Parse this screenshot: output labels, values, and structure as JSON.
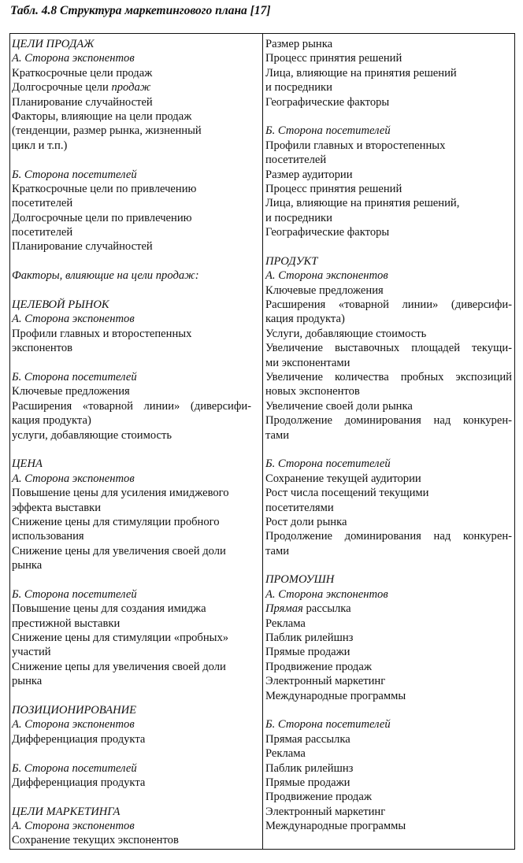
{
  "title": "Табл. 4.8 Структура маркетингового плана [17]",
  "left": [
    {
      "parts": [
        {
          "t": "ЦЕЛИ ПРОДАЖ",
          "i": true
        }
      ]
    },
    {
      "parts": [
        {
          "t": "А. Сторона экспонентов",
          "i": true
        }
      ]
    },
    {
      "parts": [
        {
          "t": "Краткосрочные цели продаж"
        }
      ]
    },
    {
      "parts": [
        {
          "t": "Долгосрочные цели "
        },
        {
          "t": "продаж",
          "i": true
        }
      ]
    },
    {
      "parts": [
        {
          "t": "Планирование случайностей"
        }
      ]
    },
    {
      "parts": [
        {
          "t": "Факторы, влияющие на цели продаж"
        }
      ]
    },
    {
      "parts": [
        {
          "t": "(тенденции, размер рынка, жизненный"
        }
      ]
    },
    {
      "parts": [
        {
          "t": "цикл и т.п.)"
        }
      ]
    },
    {
      "parts": []
    },
    {
      "parts": [
        {
          "t": "Б. Сторона посетителей",
          "i": true
        }
      ]
    },
    {
      "parts": [
        {
          "t": "Краткосрочные цели по привлечению"
        }
      ]
    },
    {
      "parts": [
        {
          "t": "посетителей"
        }
      ]
    },
    {
      "parts": [
        {
          "t": "Долгосрочные цели по привлечению"
        }
      ]
    },
    {
      "parts": [
        {
          "t": "посетителей"
        }
      ]
    },
    {
      "parts": [
        {
          "t": "Планирование случайностей"
        }
      ]
    },
    {
      "parts": []
    },
    {
      "parts": [
        {
          "t": "Факторы, влияющие на цели продаж:",
          "i": true
        }
      ]
    },
    {
      "parts": []
    },
    {
      "parts": [
        {
          "t": "ЦЕЛЕВОЙ РЫНОК",
          "i": true
        }
      ]
    },
    {
      "parts": [
        {
          "t": "А. Сторона экспонентов",
          "i": true
        }
      ]
    },
    {
      "parts": [
        {
          "t": "Профили главных и второстепенных"
        }
      ]
    },
    {
      "parts": [
        {
          "t": "экспонентов"
        }
      ]
    },
    {
      "parts": []
    },
    {
      "parts": [
        {
          "t": "Б. Сторона посетителей",
          "i": true
        }
      ]
    },
    {
      "parts": [
        {
          "t": "Ключевые предложения"
        }
      ]
    },
    {
      "parts": [
        {
          "t": "Расширения «товарной линии» (диверсифи-"
        }
      ]
    },
    {
      "parts": [
        {
          "t": "кация продукта)"
        }
      ]
    },
    {
      "parts": [
        {
          "t": "услуги, добавляющие стоимость"
        }
      ]
    },
    {
      "parts": []
    },
    {
      "parts": [
        {
          "t": "ЦЕНА",
          "i": true
        }
      ]
    },
    {
      "parts": [
        {
          "t": "А. Сторона экспонентов",
          "i": true
        }
      ]
    },
    {
      "parts": [
        {
          "t": "Повышение цены для усиления имиджевого"
        }
      ]
    },
    {
      "parts": [
        {
          "t": "эффекта выставки"
        }
      ]
    },
    {
      "parts": [
        {
          "t": "Снижение цены для стимуляции пробного"
        }
      ]
    },
    {
      "parts": [
        {
          "t": "использования"
        }
      ]
    },
    {
      "parts": [
        {
          "t": "Снижение цены для увеличения своей доли"
        }
      ]
    },
    {
      "parts": [
        {
          "t": "рынка"
        }
      ]
    },
    {
      "parts": []
    },
    {
      "parts": [
        {
          "t": "Б. Сторона посетителей",
          "i": true
        }
      ]
    },
    {
      "parts": [
        {
          "t": "Повышение цены для создания имиджа"
        }
      ]
    },
    {
      "parts": [
        {
          "t": "престижной выставки"
        }
      ]
    },
    {
      "parts": [
        {
          "t": "Снижение цены для стимуляции «пробных»"
        }
      ]
    },
    {
      "parts": [
        {
          "t": "участий"
        }
      ]
    },
    {
      "parts": [
        {
          "t": "Снижение цепы для увеличения своей доли"
        }
      ]
    },
    {
      "parts": [
        {
          "t": "рынка"
        }
      ]
    },
    {
      "parts": []
    },
    {
      "parts": [
        {
          "t": "ПОЗИЦИОНИРОВАНИЕ",
          "i": true
        }
      ]
    },
    {
      "parts": [
        {
          "t": "А. Сторона экспонентов",
          "i": true
        }
      ]
    },
    {
      "parts": [
        {
          "t": "Дифференциация продукта"
        }
      ]
    },
    {
      "parts": []
    },
    {
      "parts": [
        {
          "t": "Б. Сторона посетителей",
          "i": true
        }
      ]
    },
    {
      "parts": [
        {
          "t": "Дифференциация продукта"
        }
      ]
    },
    {
      "parts": []
    },
    {
      "parts": [
        {
          "t": "ЦЕЛИ МАРКЕТИНГА",
          "i": true
        }
      ]
    },
    {
      "parts": [
        {
          "t": "А. Сторона экспонентов",
          "i": true
        }
      ]
    },
    {
      "parts": [
        {
          "t": "Сохранение текущих экспонентов"
        }
      ]
    }
  ],
  "right": [
    {
      "parts": [
        {
          "t": "Размер рынка"
        }
      ]
    },
    {
      "parts": [
        {
          "t": "Процесс принятия решений"
        }
      ]
    },
    {
      "parts": [
        {
          "t": "Лица, влияющие на принятия решений"
        }
      ]
    },
    {
      "parts": [
        {
          "t": "и посредники"
        }
      ]
    },
    {
      "parts": [
        {
          "t": "Географические факторы"
        }
      ]
    },
    {
      "parts": []
    },
    {
      "parts": [
        {
          "t": "Б. Сторона посетителей",
          "i": true
        }
      ]
    },
    {
      "parts": [
        {
          "t": "Профили главных и второстепенных"
        }
      ]
    },
    {
      "parts": [
        {
          "t": "посетителей"
        }
      ]
    },
    {
      "parts": [
        {
          "t": "Размер аудитории"
        }
      ]
    },
    {
      "parts": [
        {
          "t": "Процесс принятия решений"
        }
      ]
    },
    {
      "parts": [
        {
          "t": "Лица, влияющие на принятия решений,"
        }
      ]
    },
    {
      "parts": [
        {
          "t": "и посредники"
        }
      ]
    },
    {
      "parts": [
        {
          "t": "Географические факторы"
        }
      ]
    },
    {
      "parts": []
    },
    {
      "parts": [
        {
          "t": "ПРОДУКТ",
          "i": true
        }
      ]
    },
    {
      "parts": [
        {
          "t": "А. Сторона экспонентов",
          "i": true
        }
      ]
    },
    {
      "parts": [
        {
          "t": "Ключевые предложения"
        }
      ]
    },
    {
      "parts": [
        {
          "t": "Расширения «товарной линии» (диверсифи-"
        }
      ]
    },
    {
      "parts": [
        {
          "t": "кация продукта)"
        }
      ]
    },
    {
      "parts": [
        {
          "t": "Услуги, добавляющие стоимость"
        }
      ]
    },
    {
      "parts": [
        {
          "t": "Увеличение выставочных площадей текущи-"
        }
      ]
    },
    {
      "parts": [
        {
          "t": "ми экспонентами"
        }
      ]
    },
    {
      "parts": [
        {
          "t": "Увеличение количества пробных экспозиций"
        }
      ]
    },
    {
      "parts": [
        {
          "t": "новых экспонентов"
        }
      ]
    },
    {
      "parts": [
        {
          "t": "Увеличение своей доли рынка"
        }
      ]
    },
    {
      "parts": [
        {
          "t": "Продолжение доминирования над конкурен-"
        }
      ]
    },
    {
      "parts": [
        {
          "t": "тами"
        }
      ]
    },
    {
      "parts": []
    },
    {
      "parts": [
        {
          "t": "Б. Сторона посетителей",
          "i": true
        }
      ]
    },
    {
      "parts": [
        {
          "t": "Сохранение текущей аудитории"
        }
      ]
    },
    {
      "parts": [
        {
          "t": "Рост числа посещений текущими"
        }
      ]
    },
    {
      "parts": [
        {
          "t": "посетителями"
        }
      ]
    },
    {
      "parts": [
        {
          "t": "Рост доли рынка"
        }
      ]
    },
    {
      "parts": [
        {
          "t": "Продолжение доминирования над конкурен-"
        }
      ]
    },
    {
      "parts": [
        {
          "t": "тами"
        }
      ]
    },
    {
      "parts": []
    },
    {
      "parts": [
        {
          "t": "ПРОМОУШН",
          "i": true
        }
      ]
    },
    {
      "parts": [
        {
          "t": "А. Сторона экспонентов",
          "i": true
        }
      ]
    },
    {
      "parts": [
        {
          "t": "Прямая",
          "i": true
        },
        {
          "t": " рассылка"
        }
      ]
    },
    {
      "parts": [
        {
          "t": "Реклама"
        }
      ]
    },
    {
      "parts": [
        {
          "t": "Паблик рилейшнз"
        }
      ]
    },
    {
      "parts": [
        {
          "t": "Прямые продажи"
        }
      ]
    },
    {
      "parts": [
        {
          "t": "Продвижение продаж"
        }
      ]
    },
    {
      "parts": [
        {
          "t": "Электронный маркетинг"
        }
      ]
    },
    {
      "parts": [
        {
          "t": "Международные программы"
        }
      ]
    },
    {
      "parts": []
    },
    {
      "parts": [
        {
          "t": "Б. Сторона посетителей",
          "i": true
        }
      ]
    },
    {
      "parts": [
        {
          "t": "Прямая рассылка"
        }
      ]
    },
    {
      "parts": [
        {
          "t": "Реклама"
        }
      ]
    },
    {
      "parts": [
        {
          "t": "Паблик рилейшнз"
        }
      ]
    },
    {
      "parts": [
        {
          "t": "Прямые продажи"
        }
      ]
    },
    {
      "parts": [
        {
          "t": "Продвижение продаж"
        }
      ]
    },
    {
      "parts": [
        {
          "t": "Электронный маркетинг"
        }
      ]
    },
    {
      "parts": [
        {
          "t": "Международные программы"
        }
      ]
    }
  ]
}
